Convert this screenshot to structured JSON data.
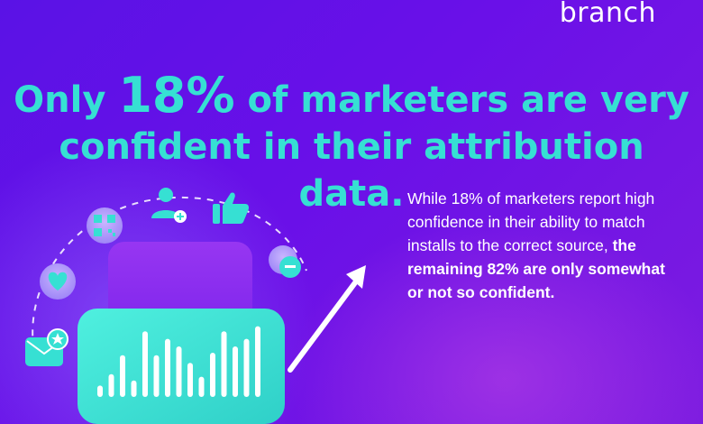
{
  "brand": {
    "logo_text": "branch"
  },
  "headline": {
    "prefix": "Only ",
    "highlight": "18%",
    "line1_suffix": " of marketers are very",
    "line2": "confident in their attribution data."
  },
  "body": {
    "normal": "While 18% of marketers report high confidence in their ability to match installs to the correct source, ",
    "bold": "the remaining 82% are only somewhat or not so confident."
  },
  "colors": {
    "background": "#5f14e6",
    "accent_teal": "#36e0d3",
    "text_white": "#ffffff",
    "card_purple": "#8a2cf0"
  },
  "illustration": {
    "icons": [
      "heart-icon",
      "mail-star-icon",
      "qr-code-icon",
      "user-add-icon",
      "thumbs-up-icon",
      "chat-icon",
      "growth-arrow-icon"
    ],
    "bar_levels": [
      0.09,
      0.18,
      0.33,
      0.13,
      0.52,
      0.33,
      0.46,
      0.4,
      0.27,
      0.16,
      0.35,
      0.52,
      0.4,
      0.46,
      0.56
    ]
  }
}
